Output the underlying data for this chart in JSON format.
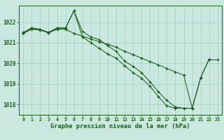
{
  "xlabel": "Graphe pression niveau de la mer (hPa)",
  "x_ticks": [
    0,
    1,
    2,
    3,
    4,
    5,
    6,
    7,
    8,
    9,
    10,
    11,
    12,
    13,
    14,
    15,
    16,
    17,
    18,
    19,
    20,
    21,
    22,
    23
  ],
  "ylim": [
    1017.5,
    1022.8
  ],
  "y_ticks": [
    1018,
    1019,
    1020,
    1021,
    1022
  ],
  "bg_color": "#cbe8e0",
  "grid_color": "#9ecfbe",
  "line_color": "#1a5e1a",
  "line1_y": [
    1021.5,
    1021.72,
    1021.65,
    1021.5,
    1021.72,
    1021.72,
    1022.55,
    1021.55,
    1021.28,
    1021.15,
    1020.85,
    1020.58,
    1020.1,
    1019.85,
    1019.55,
    1019.1,
    1018.62,
    1018.2,
    1017.88,
    1017.82,
    1017.82,
    1019.3,
    1020.2,
    null
  ],
  "line2_y": [
    1021.48,
    1021.7,
    1021.62,
    1021.48,
    1021.7,
    1021.7,
    1022.55,
    1021.28,
    1021.0,
    1020.72,
    1020.45,
    1020.25,
    1019.88,
    1019.55,
    1019.28,
    1018.88,
    1018.38,
    1017.93,
    1017.82,
    1017.82,
    1017.82,
    1019.3,
    1020.2,
    null
  ],
  "line3_y": [
    1021.45,
    1021.65,
    1021.62,
    1021.48,
    1021.65,
    1021.65,
    1021.45,
    1021.32,
    1021.18,
    1021.05,
    1020.92,
    1020.78,
    1020.58,
    1020.42,
    1020.25,
    1020.08,
    1019.92,
    1019.75,
    1019.58,
    1019.42,
    1017.82,
    null,
    1020.2,
    1020.2
  ]
}
